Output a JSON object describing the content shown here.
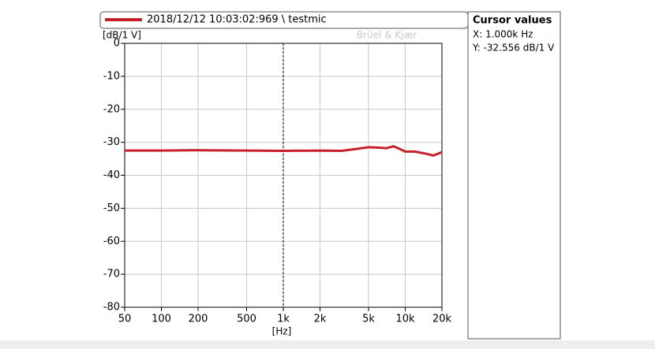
{
  "chart_data": {
    "type": "line",
    "series": [
      {
        "name": "2018/12/12 10:03:02:969 \\ testmic",
        "color": "#c8202a",
        "x": [
          50,
          100,
          200,
          500,
          1000,
          2000,
          3000,
          4000,
          5000,
          6000,
          7000,
          8000,
          9000,
          10000,
          12000,
          15000,
          17000,
          20000
        ],
        "values": [
          -32.5,
          -32.5,
          -32.4,
          -32.5,
          -32.6,
          -32.5,
          -32.6,
          -32,
          -31.5,
          -31.6,
          -31.8,
          -31.2,
          -32,
          -32.8,
          -32.8,
          -33.5,
          -34,
          -33
        ]
      }
    ],
    "y_label": "[dB/1 V]",
    "x_label": "[Hz]",
    "watermark": "Brüel & Kjær",
    "log_x": true,
    "grid": true,
    "xlim": [
      50,
      20000
    ],
    "xticks": [
      50,
      100,
      200,
      500,
      {
        "value": 1000,
        "label": "1k"
      },
      {
        "value": 2000,
        "label": "2k"
      },
      {
        "value": 5000,
        "label": "5k"
      },
      {
        "value": 10000,
        "label": "10k"
      },
      {
        "value": 20000,
        "label": "20k"
      }
    ],
    "ylim": [
      -80,
      0
    ],
    "yticks": [
      0,
      -10,
      -20,
      -30,
      -40,
      -50,
      -60,
      -70,
      -80
    ],
    "cursor": {
      "x": 1000,
      "title": "Cursor values",
      "x_text": "X: 1.000k Hz",
      "y_text": "Y: -32.556 dB/1 V"
    }
  }
}
